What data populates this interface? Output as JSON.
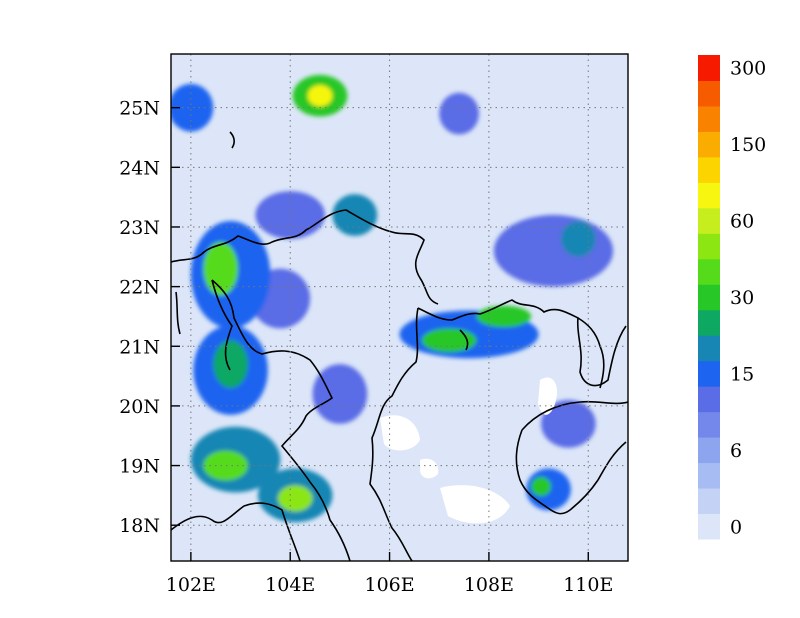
{
  "map": {
    "lon_range": [
      101.6,
      110.8
    ],
    "lat_range": [
      17.4,
      25.9
    ],
    "x_ticks": [
      {
        "value": 102,
        "label": "102E"
      },
      {
        "value": 104,
        "label": "104E"
      },
      {
        "value": 106,
        "label": "106E"
      },
      {
        "value": 108,
        "label": "108E"
      },
      {
        "value": 110,
        "label": "110E"
      }
    ],
    "y_ticks": [
      {
        "value": 18,
        "label": "18N"
      },
      {
        "value": 19,
        "label": "19N"
      },
      {
        "value": 20,
        "label": "20N"
      },
      {
        "value": 21,
        "label": "21N"
      },
      {
        "value": 22,
        "label": "22N"
      },
      {
        "value": 23,
        "label": "23N"
      },
      {
        "value": 24,
        "label": "24N"
      },
      {
        "value": 25,
        "label": "25N"
      }
    ],
    "grid": true
  },
  "colorbar": {
    "labels": [
      "0",
      "6",
      "15",
      "30",
      "60",
      "150",
      "300"
    ],
    "colors": [
      "#dce6f8",
      "#c3d2f5",
      "#a7bcf2",
      "#8da4ef",
      "#7388ea",
      "#5a6ce6",
      "#1d64f0",
      "#1786b4",
      "#0ea863",
      "#27c727",
      "#56db1b",
      "#8ce612",
      "#c6ee1f",
      "#f6f610",
      "#fcd400",
      "#fbac00",
      "#f98300",
      "#f75b00",
      "#f51a00"
    ]
  },
  "field": {
    "type": "contour-fill",
    "background_level": 0,
    "regions": [
      {
        "lon": 102.0,
        "lat": 25.0,
        "rx": 0.45,
        "ry": 0.4,
        "level": 6
      },
      {
        "lon": 104.6,
        "lat": 25.2,
        "rx": 0.55,
        "ry": 0.35,
        "level": 9
      },
      {
        "lon": 104.6,
        "lat": 25.2,
        "rx": 0.25,
        "ry": 0.18,
        "level": 13
      },
      {
        "lon": 107.4,
        "lat": 24.9,
        "rx": 0.4,
        "ry": 0.35,
        "level": 5
      },
      {
        "lon": 104.0,
        "lat": 23.2,
        "rx": 0.7,
        "ry": 0.4,
        "level": 5
      },
      {
        "lon": 105.3,
        "lat": 23.2,
        "rx": 0.45,
        "ry": 0.35,
        "level": 7
      },
      {
        "lon": 102.8,
        "lat": 22.2,
        "rx": 0.8,
        "ry": 0.9,
        "level": 6
      },
      {
        "lon": 102.6,
        "lat": 22.3,
        "rx": 0.35,
        "ry": 0.45,
        "level": 10
      },
      {
        "lon": 103.8,
        "lat": 21.8,
        "rx": 0.6,
        "ry": 0.5,
        "level": 5
      },
      {
        "lon": 102.8,
        "lat": 20.6,
        "rx": 0.75,
        "ry": 0.75,
        "level": 6
      },
      {
        "lon": 102.8,
        "lat": 20.7,
        "rx": 0.35,
        "ry": 0.4,
        "level": 8
      },
      {
        "lon": 102.9,
        "lat": 19.1,
        "rx": 0.9,
        "ry": 0.55,
        "level": 7
      },
      {
        "lon": 102.7,
        "lat": 19.0,
        "rx": 0.45,
        "ry": 0.25,
        "level": 10
      },
      {
        "lon": 104.1,
        "lat": 18.5,
        "rx": 0.75,
        "ry": 0.45,
        "level": 7
      },
      {
        "lon": 104.1,
        "lat": 18.45,
        "rx": 0.35,
        "ry": 0.22,
        "level": 11
      },
      {
        "lon": 105.0,
        "lat": 20.2,
        "rx": 0.55,
        "ry": 0.5,
        "level": 5
      },
      {
        "lon": 107.6,
        "lat": 21.2,
        "rx": 1.4,
        "ry": 0.4,
        "level": 6
      },
      {
        "lon": 107.2,
        "lat": 21.1,
        "rx": 0.55,
        "ry": 0.2,
        "level": 9
      },
      {
        "lon": 108.3,
        "lat": 21.5,
        "rx": 0.55,
        "ry": 0.18,
        "level": 9
      },
      {
        "lon": 109.3,
        "lat": 22.6,
        "rx": 1.2,
        "ry": 0.6,
        "level": 5
      },
      {
        "lon": 109.8,
        "lat": 22.8,
        "rx": 0.35,
        "ry": 0.3,
        "level": 7
      },
      {
        "lon": 109.6,
        "lat": 19.7,
        "rx": 0.55,
        "ry": 0.4,
        "level": 5
      },
      {
        "lon": 109.2,
        "lat": 18.6,
        "rx": 0.45,
        "ry": 0.35,
        "level": 6
      },
      {
        "lon": 109.05,
        "lat": 18.65,
        "rx": 0.2,
        "ry": 0.16,
        "level": 9
      }
    ]
  }
}
